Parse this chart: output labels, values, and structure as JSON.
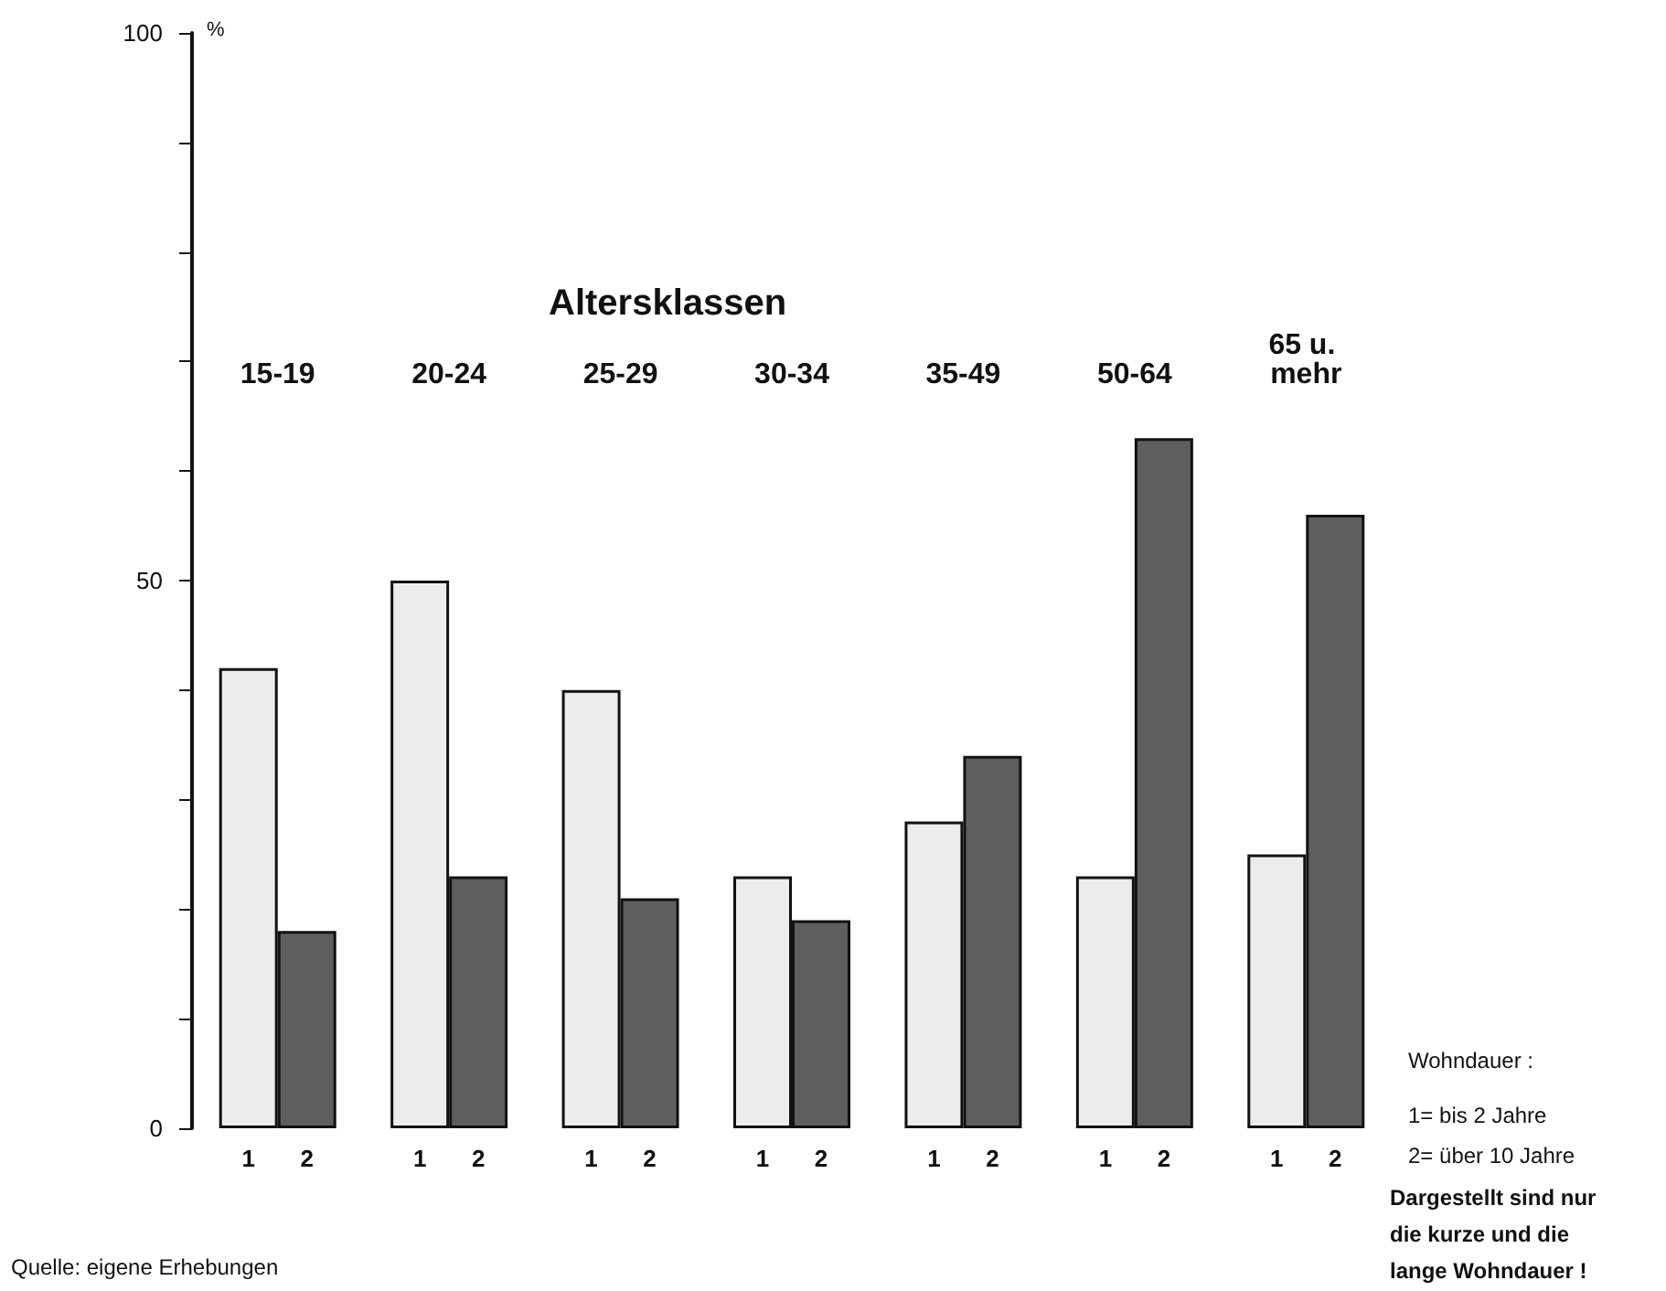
{
  "chart_data": {
    "type": "bar",
    "xlabel": "Altersklassen",
    "ylabel": "%",
    "categories": [
      "15-19",
      "20-24",
      "25-29",
      "30-34",
      "35-49",
      "50-64",
      "65 u. mehr"
    ],
    "series": [
      {
        "name": "1",
        "color": "#ececec",
        "values": [
          42,
          50,
          40,
          23,
          28,
          23,
          25
        ]
      },
      {
        "name": "2",
        "color": "#5e5e5e",
        "values": [
          18,
          23,
          21,
          19,
          34,
          63,
          56
        ]
      }
    ],
    "ylim": [
      0,
      100
    ],
    "yticks": [
      0,
      {
        "value": 10,
        "label": null
      },
      {
        "value": 20,
        "label": null
      },
      {
        "value": 30,
        "label": null
      },
      {
        "value": 40,
        "label": null
      },
      50,
      {
        "value": 60,
        "label": null
      },
      {
        "value": 70,
        "label": null
      },
      {
        "value": 80,
        "label": null
      },
      {
        "value": 90,
        "label": null
      },
      100
    ],
    "grid": false,
    "legend": false,
    "annotations": [
      "Wohndauer :",
      "1= bis 2 Jahre",
      "2= über 10 Jahre",
      "Dargestellt sind nur die kurze und die lange Wohndauer !",
      "Quelle: eigene Erhebungen"
    ]
  }
}
